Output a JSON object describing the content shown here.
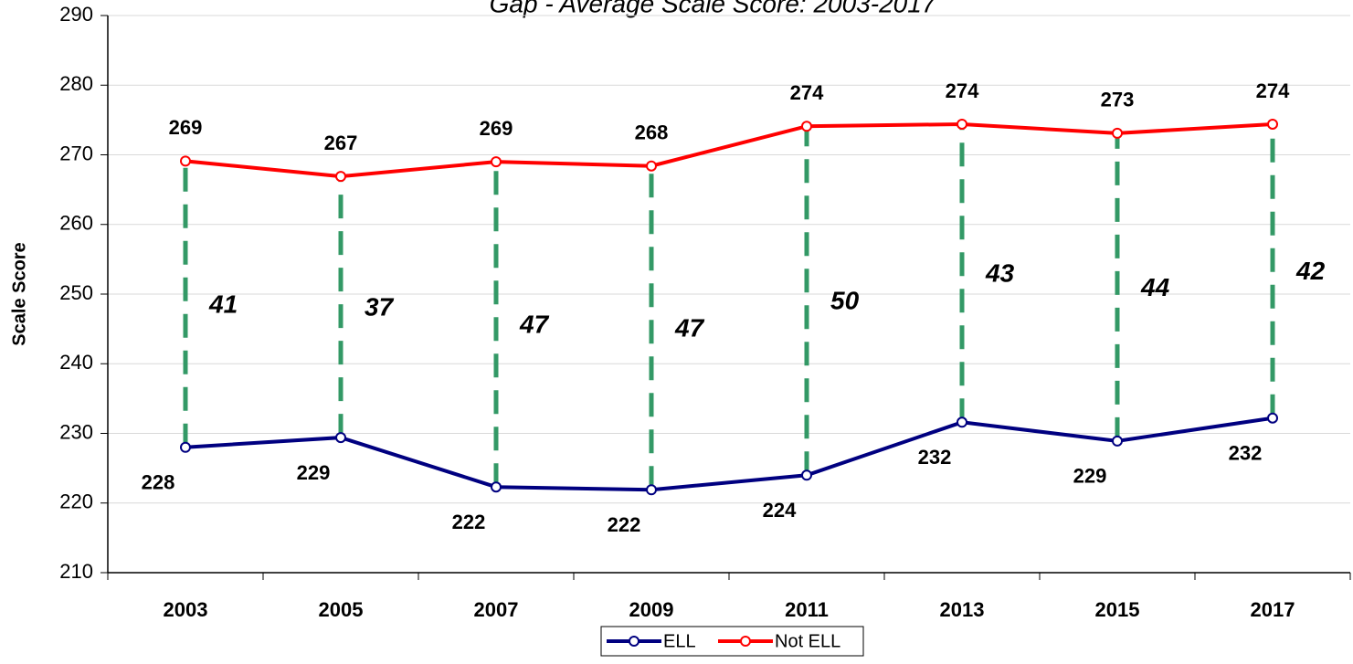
{
  "chart_data": {
    "type": "line",
    "title": "Gap - Average Scale Score: 2003-2017",
    "y_label": "Scale Score",
    "categories": [
      "2003",
      "2005",
      "2007",
      "2009",
      "2011",
      "2013",
      "2015",
      "2017"
    ],
    "series": [
      {
        "name": "ELL",
        "color": "#000080",
        "values": [
          228.0,
          229.4,
          222.3,
          221.9,
          224.0,
          231.6,
          228.9,
          232.2
        ],
        "value_labels": [
          "228",
          "229",
          "222",
          "222",
          "224",
          "232",
          "229",
          "232"
        ]
      },
      {
        "name": "Not ELL",
        "color": "#ff0000",
        "values": [
          269.1,
          266.9,
          269.0,
          268.4,
          274.1,
          274.4,
          273.1,
          274.4
        ],
        "value_labels": [
          "269",
          "267",
          "269",
          "268",
          "274",
          "274",
          "273",
          "274"
        ]
      }
    ],
    "gap_labels": [
      41,
      37,
      47,
      47,
      50,
      43,
      44,
      42
    ],
    "gap_color": "#339966",
    "ylim": [
      210,
      290
    ],
    "yticks": [
      210,
      220,
      230,
      240,
      250,
      260,
      270,
      280,
      290
    ],
    "grid": true,
    "legend": "bottom"
  }
}
